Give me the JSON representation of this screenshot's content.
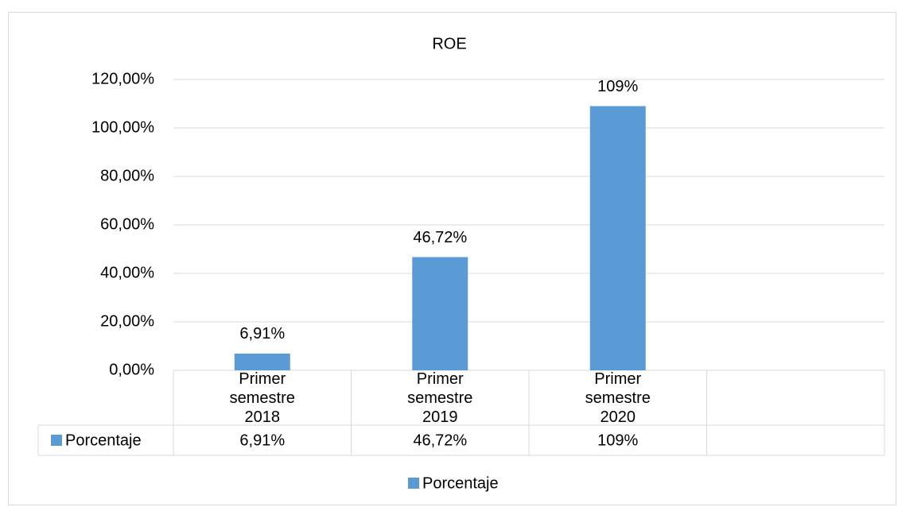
{
  "chart_data": {
    "type": "bar",
    "title": "ROE",
    "categories": [
      "Primer semestre 2018",
      "Primer semestre 2019",
      "Primer semestre 2020",
      null
    ],
    "series": [
      {
        "name": "Porcentaje",
        "color": "#5b9bd5",
        "values": [
          6.91,
          46.72,
          109,
          null
        ],
        "value_labels": [
          "6,91%",
          "46,72%",
          "109%",
          null
        ]
      }
    ],
    "ylim": [
      0,
      120
    ],
    "yticks": [
      {
        "value": 0,
        "label": "0,00%"
      },
      {
        "value": 20,
        "label": "20,00%"
      },
      {
        "value": 40,
        "label": "40,00%"
      },
      {
        "value": 60,
        "label": "60,00%"
      },
      {
        "value": 80,
        "label": "80,00%"
      },
      {
        "value": 100,
        "label": "100,00%"
      },
      {
        "value": 120,
        "label": "120,00%"
      }
    ],
    "grid": true,
    "data_table": true,
    "legend": "bottom"
  }
}
